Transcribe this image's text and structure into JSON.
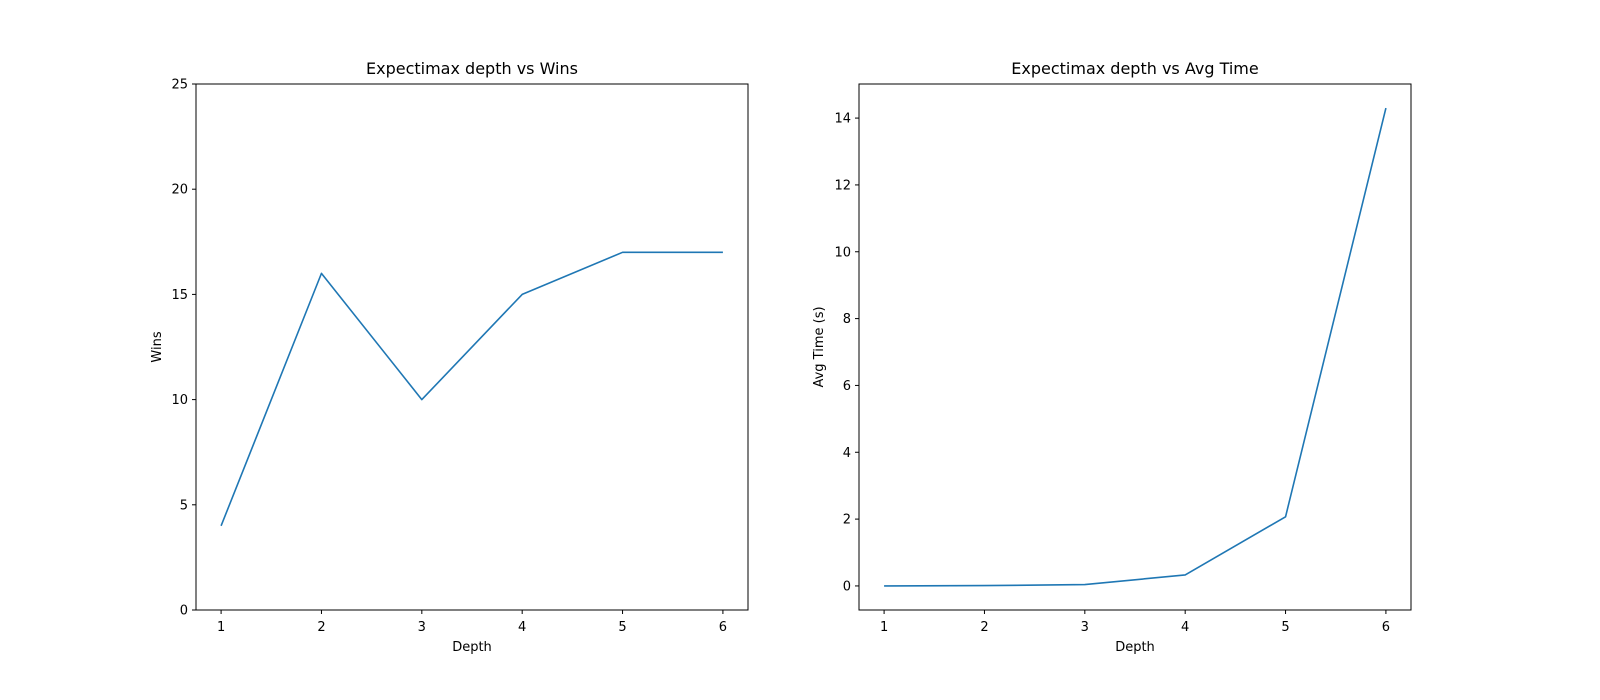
{
  "chart_data": [
    {
      "type": "line",
      "title": "Expectimax depth vs Wins",
      "xlabel": "Depth",
      "ylabel": "Wins",
      "x": [
        1,
        2,
        3,
        4,
        5,
        6
      ],
      "xticks": [
        1,
        2,
        3,
        4,
        5,
        6
      ],
      "xlim": [
        0.75,
        6.25
      ],
      "yticks": [
        0,
        5,
        10,
        15,
        20,
        25
      ],
      "ylim": [
        0,
        25
      ],
      "series": [
        {
          "values": [
            4,
            16,
            10,
            15,
            17,
            17
          ],
          "color": "#1f77b4"
        }
      ],
      "grid": false
    },
    {
      "type": "line",
      "title": "Expectimax depth vs Avg Time",
      "xlabel": "Depth",
      "ylabel": "Avg Time (s)",
      "x": [
        1,
        2,
        3,
        4,
        5,
        6
      ],
      "xticks": [
        1,
        2,
        3,
        4,
        5,
        6
      ],
      "xlim": [
        0.75,
        6.25
      ],
      "yticks": [
        0,
        2,
        4,
        6,
        8,
        10,
        12,
        14
      ],
      "ylim": [
        -0.72,
        15.02
      ],
      "series": [
        {
          "values": [
            0.0,
            0.01,
            0.04,
            0.33,
            2.07,
            14.3
          ],
          "color": "#1f77b4"
        }
      ],
      "grid": false
    }
  ]
}
